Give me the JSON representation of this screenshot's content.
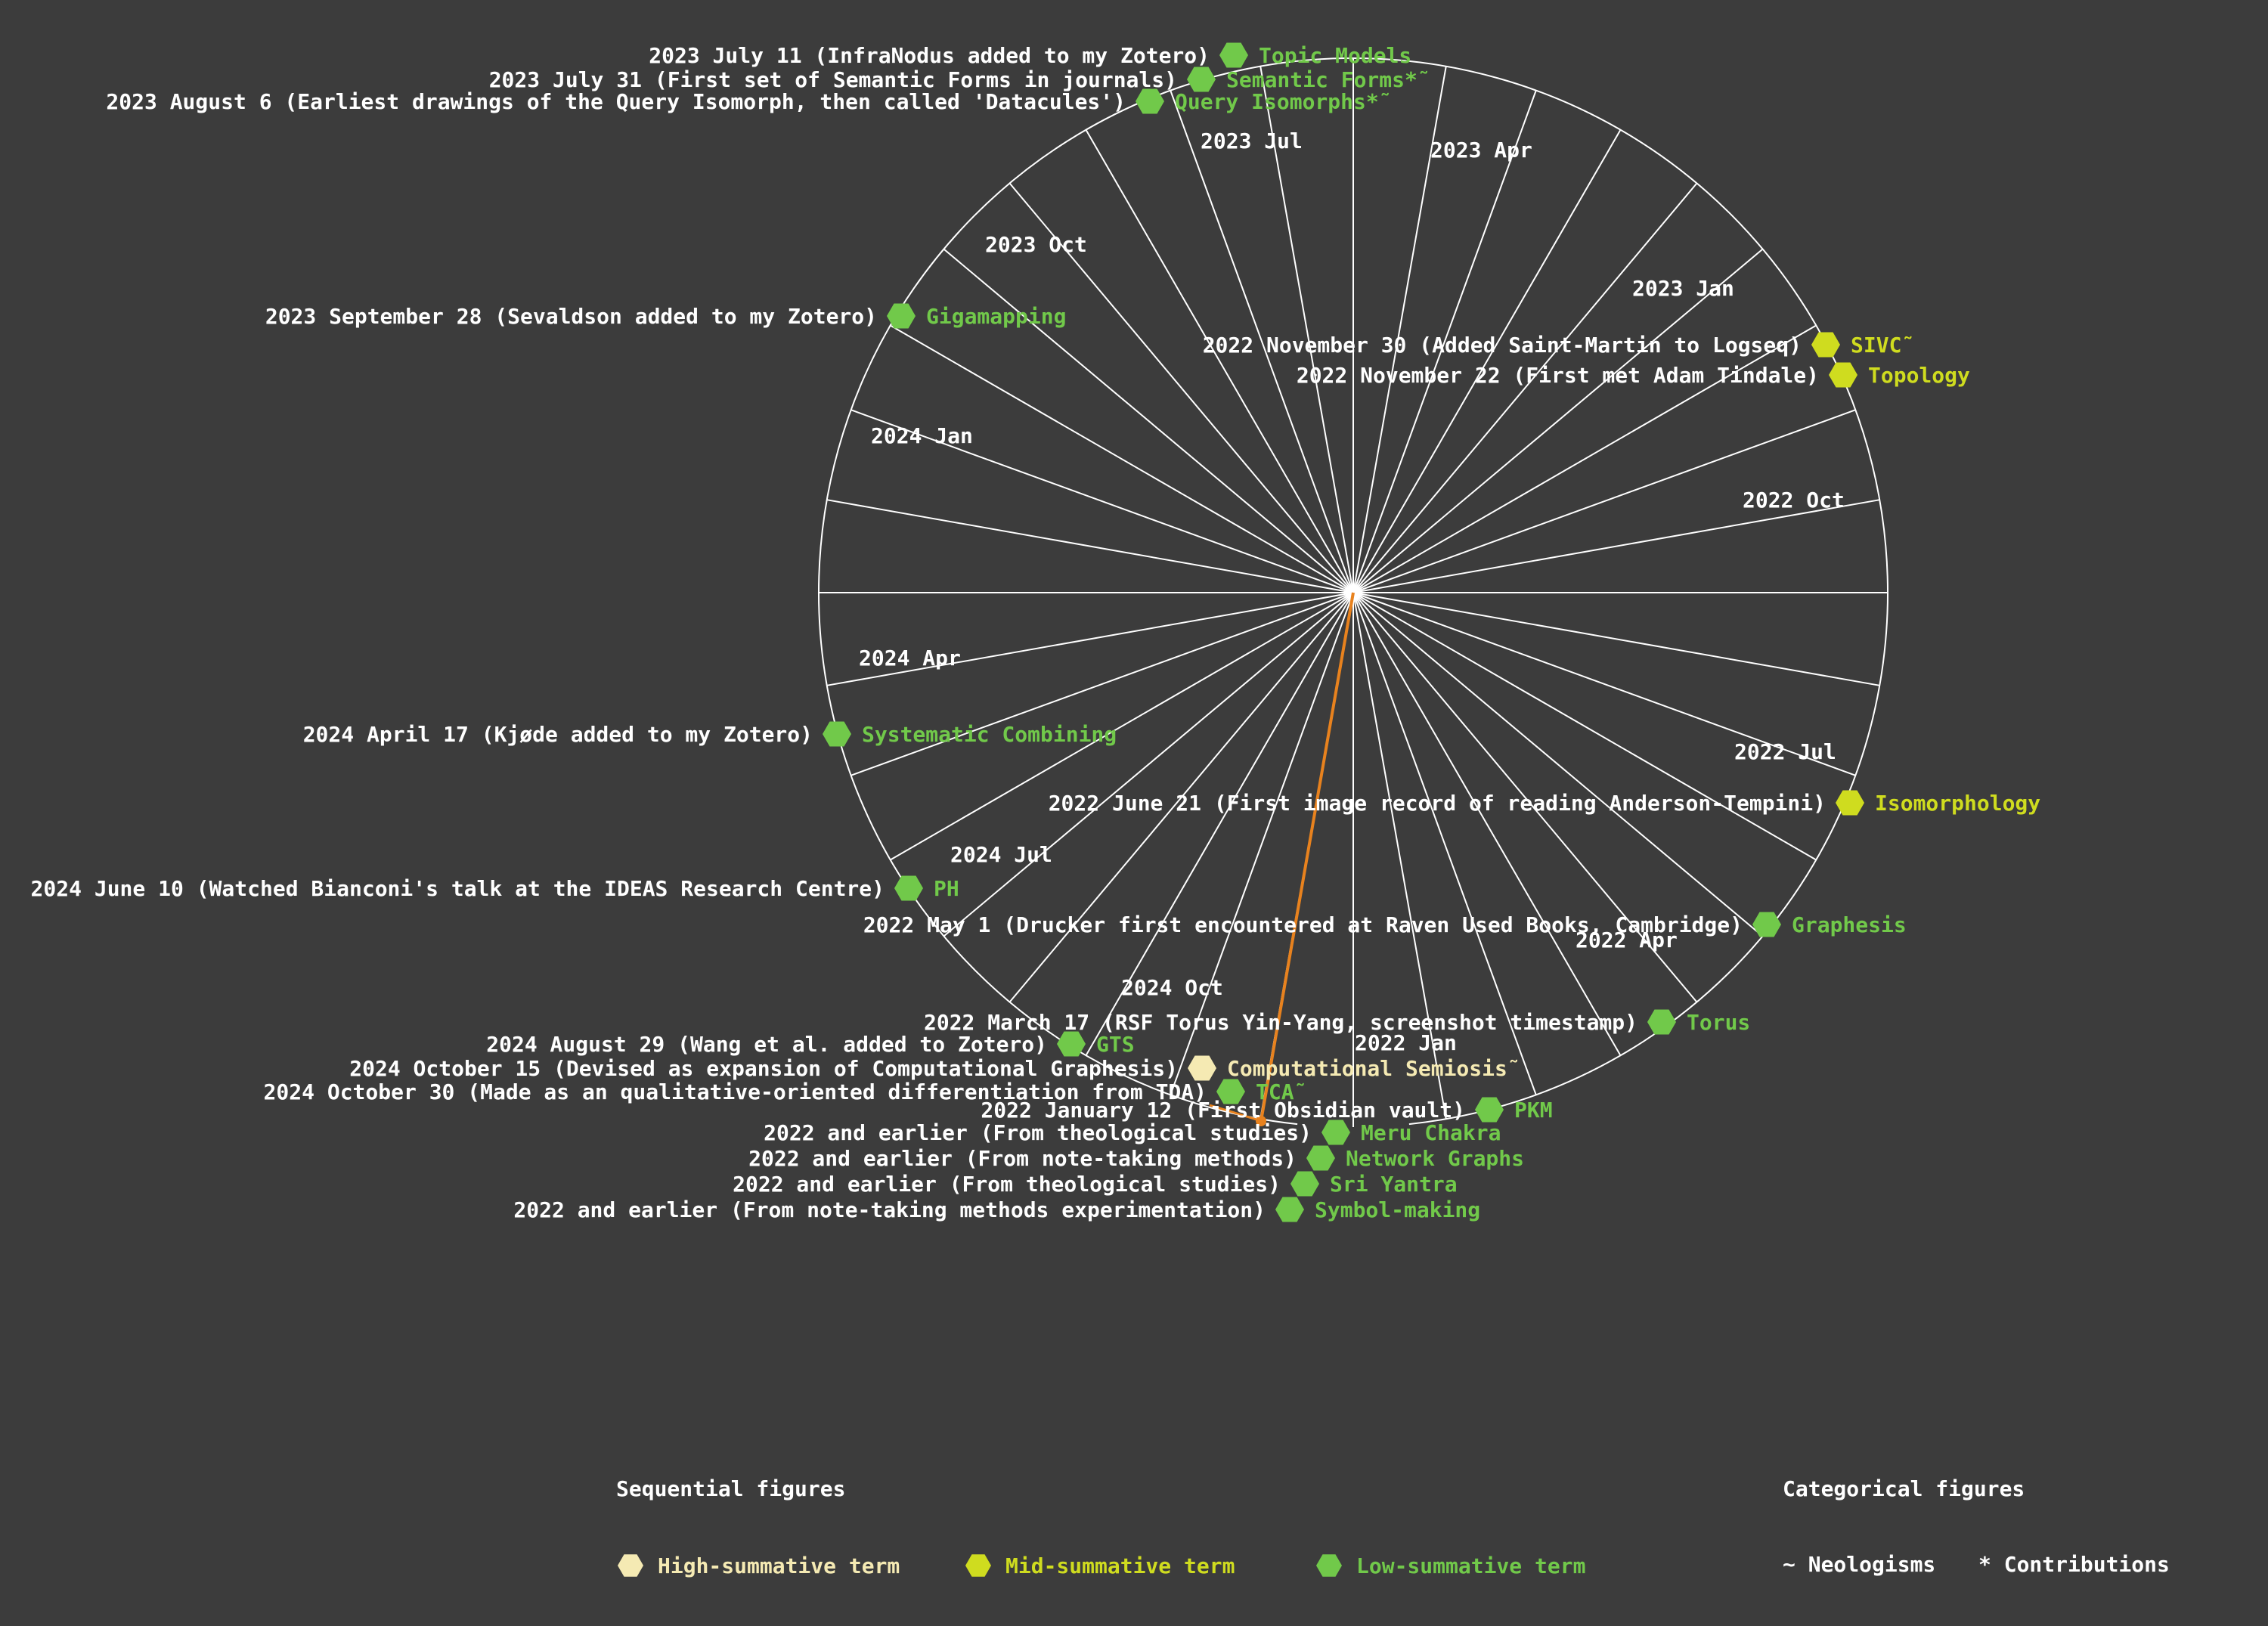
{
  "colors": {
    "background": "#3c3c3c",
    "grid": "#ffffff",
    "high": "#f5eab3",
    "mid": "#cfdc1f",
    "low": "#71c94a",
    "path": "#e8821e"
  },
  "month_labels": [
    "2022 Jan",
    "2022 Apr",
    "2022 Jul",
    "2022 Oct",
    "2023 Jan",
    "2023 Apr",
    "2023 Jul",
    "2023 Oct",
    "2024 Jan",
    "2024 Apr",
    "2024 Jul",
    "2024 Oct"
  ],
  "events": [
    {
      "note": "2023 July 11 (InfraNodus added to my Zotero)",
      "term": "Topic Models",
      "level": "low"
    },
    {
      "note": "2023 July 31 (First set of Semantic Forms in journals)",
      "term": "Semantic Forms*˜",
      "level": "low"
    },
    {
      "note": "2023 August 6 (Earliest drawings of the Query Isomorph, then called 'Datacules')",
      "term": "Query Isomorphs*˜",
      "level": "low"
    },
    {
      "note": "2023 September 28 (Sevaldson added to my Zotero)",
      "term": "Gigamapping",
      "level": "low"
    },
    {
      "note": "2022 November 30 (Added Saint-Martin to Logseq)",
      "term": "SIVC˜",
      "level": "mid"
    },
    {
      "note": "2022 November 22 (First met Adam Tindale)",
      "term": "Topology",
      "level": "mid"
    },
    {
      "note": "2024 April 17 (Kjøde added to my Zotero)",
      "term": "Systematic Combining",
      "level": "low"
    },
    {
      "note": "2022 June 21 (First image record of reading Anderson-Tempini)",
      "term": "Isomorphology",
      "level": "mid"
    },
    {
      "note": "2024 June 10 (Watched Bianconi's talk at the IDEAS Research Centre)",
      "term": "PH",
      "level": "low"
    },
    {
      "note": "2022 May 1 (Drucker first encountered at Raven Used Books, Cambridge)",
      "term": "Graphesis",
      "level": "low"
    },
    {
      "note": "2022 March 17 (RSF Torus Yin-Yang, screenshot timestamp)",
      "term": "Torus",
      "level": "low"
    },
    {
      "note": "2024 August 29 (Wang et al. added to Zotero)",
      "term": "GTS",
      "level": "low"
    },
    {
      "note": "2024 October 15 (Devised as expansion of Computational Graphesis)",
      "term": "Computational Semiosis˜",
      "level": "high"
    },
    {
      "note": "2024 October 30 (Made as an qualitative-oriented differentiation from TDA)",
      "term": "TCA˜",
      "level": "low"
    },
    {
      "note": "2022 January 12 (First Obsidian vault)",
      "term": "PKM",
      "level": "low"
    },
    {
      "note": "2022 and earlier (From theological studies)",
      "term": "Meru Chakra",
      "level": "low"
    },
    {
      "note": "2022 and earlier (From note-taking methods)",
      "term": "Network Graphs",
      "level": "low"
    },
    {
      "note": "2022 and earlier (From theological studies)",
      "term": "Sri Yantra",
      "level": "low"
    },
    {
      "note": "2022 and earlier (From note-taking methods experimentation)",
      "term": "Symbol-making",
      "level": "low"
    }
  ],
  "legend": {
    "sequential_title": "Sequential figures",
    "categorical_title": "Categorical figures",
    "high_label": "High-summative term",
    "mid_label": "Mid-summative term",
    "low_label": "Low-summative term",
    "neologisms_label": "~ Neologisms",
    "contributions_label": "* Contributions"
  }
}
